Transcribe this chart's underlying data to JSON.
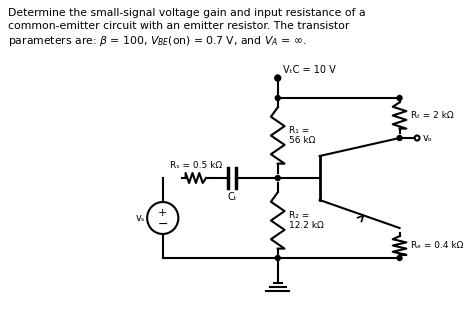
{
  "title_text": "Determine the small-signal voltage gain and input resistance of a\ncommon-emitter circuit with an emitter resistor. The transistor\nparameters are: β = 100, VₛE(on) = 0.7 V, and Vₐ = ∞.",
  "background_color": "#ffffff",
  "text_color": "#000000",
  "vcc_label": "VₜC = 10 V",
  "r1_label": "R₁ =\n56 kΩ",
  "r2_label": "R₂ =\n12.2 kΩ",
  "rc_label": "Rₜ = 2 kΩ",
  "re_label": "Rₑ = 0.4 kΩ",
  "rs_label": "Rₛ = 0.5 kΩ",
  "cc_label": "Cₜ",
  "vo_label": "vₒ",
  "vs_label": "vₛ"
}
